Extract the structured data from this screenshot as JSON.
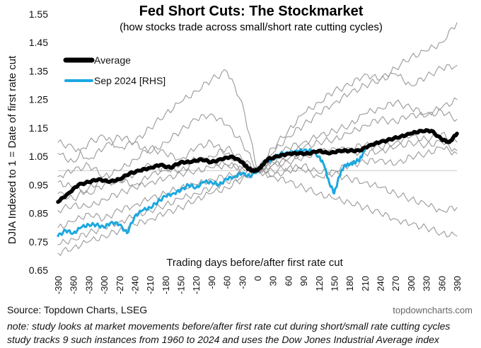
{
  "chart_data": {
    "type": "line",
    "title": "Fed Short Cuts: The Stockmarket",
    "subtitle": "(how stocks trade across small/short rate cutting cycles)",
    "ylabel": "DJIA Indexed to 1 = Date of first rate cut",
    "xlabel": "Trading days before/after first rate cut",
    "ylim": [
      0.65,
      1.55
    ],
    "yticks": [
      "0.65",
      "0.75",
      "0.85",
      "0.95",
      "1.05",
      "1.15",
      "1.25",
      "1.35",
      "1.45",
      "1.55"
    ],
    "xlim": [
      -390,
      390
    ],
    "xticks": [
      "-390",
      "-360",
      "-330",
      "-300",
      "-270",
      "-240",
      "-210",
      "-180",
      "-150",
      "-120",
      "-90",
      "-60",
      "-30",
      "0",
      "30",
      "60",
      "90",
      "120",
      "150",
      "180",
      "210",
      "240",
      "270",
      "300",
      "330",
      "360",
      "390"
    ],
    "reference_line": 1.0,
    "legend_position": "top-left",
    "series": [
      {
        "name": "Average",
        "color": "#000000",
        "x": [
          -390,
          -370,
          -350,
          -330,
          -310,
          -290,
          -270,
          -250,
          -230,
          -210,
          -190,
          -170,
          -150,
          -130,
          -110,
          -90,
          -70,
          -50,
          -30,
          -20,
          -10,
          0,
          10,
          20,
          40,
          60,
          80,
          100,
          120,
          140,
          160,
          180,
          200,
          220,
          240,
          260,
          280,
          300,
          320,
          340,
          360,
          375,
          390
        ],
        "values": [
          0.89,
          0.92,
          0.95,
          0.96,
          0.97,
          0.96,
          0.97,
          0.99,
          1.0,
          1.01,
          1.02,
          1.01,
          1.03,
          1.03,
          1.04,
          1.03,
          1.04,
          1.05,
          1.03,
          1.01,
          1.0,
          1.0,
          1.02,
          1.04,
          1.05,
          1.06,
          1.06,
          1.06,
          1.07,
          1.06,
          1.07,
          1.07,
          1.07,
          1.09,
          1.1,
          1.11,
          1.12,
          1.13,
          1.14,
          1.14,
          1.11,
          1.1,
          1.13
        ]
      },
      {
        "name": "Sep 2024 [RHS]",
        "color": "#1ba8e0",
        "x": [
          -390,
          -375,
          -360,
          -345,
          -330,
          -315,
          -300,
          -285,
          -270,
          -255,
          -240,
          -225,
          -210,
          -195,
          -180,
          -165,
          -150,
          -135,
          -120,
          -105,
          -90,
          -75,
          -60,
          -45,
          -30,
          -15,
          0,
          15,
          30,
          45,
          60,
          75,
          90,
          105,
          120,
          130,
          140,
          150,
          160,
          170,
          180,
          190,
          200,
          210
        ],
        "values": [
          0.77,
          0.79,
          0.78,
          0.8,
          0.81,
          0.81,
          0.8,
          0.82,
          0.81,
          0.78,
          0.84,
          0.86,
          0.87,
          0.89,
          0.91,
          0.92,
          0.93,
          0.95,
          0.94,
          0.96,
          0.96,
          0.95,
          0.97,
          0.98,
          0.99,
          0.98,
          1.0,
          1.03,
          1.04,
          1.06,
          1.06,
          1.07,
          1.07,
          1.07,
          1.05,
          1.02,
          0.96,
          0.92,
          0.98,
          1.02,
          1.02,
          1.03,
          1.04,
          1.07
        ]
      }
    ],
    "background_series": [
      {
        "color": "#999999",
        "x": [
          -390,
          -360,
          -330,
          -300,
          -270,
          -240,
          -210,
          -180,
          -150,
          -120,
          -90,
          -60,
          -30,
          0,
          30,
          60,
          90,
          120,
          150,
          180,
          210,
          240,
          270,
          300,
          330,
          360,
          390
        ],
        "values": [
          1.06,
          1.03,
          1.1,
          1.12,
          1.08,
          1.1,
          1.15,
          1.2,
          1.24,
          1.28,
          1.32,
          1.35,
          1.24,
          1.0,
          1.08,
          1.14,
          1.2,
          1.24,
          1.28,
          1.3,
          1.34,
          1.32,
          1.36,
          1.4,
          1.42,
          1.45,
          1.52
        ]
      },
      {
        "color": "#999999",
        "x": [
          -390,
          -360,
          -330,
          -300,
          -270,
          -240,
          -210,
          -180,
          -150,
          -120,
          -90,
          -60,
          -30,
          0,
          30,
          60,
          90,
          120,
          150,
          180,
          210,
          240,
          270,
          300,
          330,
          360,
          390
        ],
        "values": [
          1.1,
          1.08,
          1.04,
          1.08,
          1.12,
          1.1,
          1.06,
          1.1,
          1.14,
          1.18,
          1.2,
          1.16,
          1.1,
          1.0,
          1.06,
          1.12,
          1.16,
          1.2,
          1.24,
          1.27,
          1.3,
          1.32,
          1.34,
          1.3,
          1.33,
          1.36,
          1.37
        ]
      },
      {
        "color": "#999999",
        "x": [
          -390,
          -360,
          -330,
          -300,
          -270,
          -240,
          -210,
          -180,
          -150,
          -120,
          -90,
          -60,
          -30,
          0,
          30,
          60,
          90,
          120,
          150,
          180,
          210,
          240,
          270,
          300,
          330,
          360,
          390
        ],
        "values": [
          0.98,
          1.0,
          1.02,
          0.98,
          1.0,
          1.04,
          1.08,
          1.06,
          1.04,
          1.08,
          1.1,
          1.06,
          1.02,
          1.0,
          1.04,
          1.08,
          1.1,
          1.12,
          1.14,
          1.16,
          1.2,
          1.22,
          1.24,
          1.22,
          1.2,
          1.22,
          1.25
        ]
      },
      {
        "color": "#999999",
        "x": [
          -390,
          -360,
          -330,
          -300,
          -270,
          -240,
          -210,
          -180,
          -150,
          -120,
          -90,
          -60,
          -30,
          0,
          30,
          60,
          90,
          120,
          150,
          180,
          210,
          240,
          270,
          300,
          330,
          360,
          390
        ],
        "values": [
          0.92,
          0.9,
          0.94,
          0.97,
          0.96,
          0.99,
          1.02,
          1.0,
          1.02,
          1.04,
          1.03,
          1.02,
          1.01,
          1.0,
          1.03,
          1.06,
          1.08,
          1.1,
          1.11,
          1.13,
          1.16,
          1.18,
          1.17,
          1.2,
          1.19,
          1.21,
          1.18
        ]
      },
      {
        "color": "#999999",
        "x": [
          -390,
          -360,
          -330,
          -300,
          -270,
          -240,
          -210,
          -180,
          -150,
          -120,
          -90,
          -60,
          -30,
          0,
          30,
          60,
          90,
          120,
          150,
          180,
          210,
          240,
          270,
          300,
          330,
          360,
          390
        ],
        "values": [
          0.86,
          0.88,
          0.87,
          0.9,
          0.92,
          0.94,
          0.96,
          0.97,
          0.99,
          1.0,
          1.01,
          1.02,
          1.01,
          1.0,
          1.02,
          1.04,
          1.06,
          1.07,
          1.06,
          1.08,
          1.09,
          1.08,
          1.1,
          1.12,
          1.11,
          1.13,
          1.1
        ]
      },
      {
        "color": "#999999",
        "x": [
          -390,
          -360,
          -330,
          -300,
          -270,
          -240,
          -210,
          -180,
          -150,
          -120,
          -90,
          -60,
          -30,
          0,
          30,
          60,
          90,
          120,
          150,
          180,
          210,
          240,
          270,
          300,
          330,
          360,
          390
        ],
        "values": [
          0.8,
          0.82,
          0.85,
          0.83,
          0.86,
          0.88,
          0.9,
          0.92,
          0.94,
          0.95,
          0.97,
          0.98,
          0.99,
          1.0,
          1.02,
          1.03,
          1.05,
          1.06,
          1.08,
          1.07,
          1.06,
          1.07,
          1.08,
          1.1,
          1.09,
          1.1,
          1.07
        ]
      },
      {
        "color": "#999999",
        "x": [
          -390,
          -360,
          -330,
          -300,
          -270,
          -240,
          -210,
          -180,
          -150,
          -120,
          -90,
          -60,
          -30,
          0,
          30,
          60,
          90,
          120,
          150,
          180,
          210,
          240,
          270,
          300,
          330,
          360,
          390
        ],
        "values": [
          0.74,
          0.76,
          0.78,
          0.8,
          0.82,
          0.84,
          0.86,
          0.88,
          0.9,
          0.92,
          0.94,
          0.96,
          0.98,
          1.0,
          1.0,
          1.01,
          1.0,
          0.98,
          0.99,
          0.97,
          0.96,
          0.94,
          0.92,
          0.9,
          0.88,
          0.86,
          0.87
        ]
      },
      {
        "color": "#999999",
        "x": [
          -390,
          -360,
          -330,
          -300,
          -270,
          -240,
          -210,
          -180,
          -150,
          -120,
          -90,
          -60,
          -30,
          0,
          30,
          60,
          90,
          120,
          150,
          180,
          210,
          240,
          270,
          300,
          330,
          360,
          390
        ],
        "values": [
          0.71,
          0.73,
          0.75,
          0.77,
          0.79,
          0.81,
          0.83,
          0.85,
          0.87,
          0.9,
          0.92,
          0.94,
          0.97,
          1.0,
          0.98,
          0.96,
          0.94,
          0.92,
          0.9,
          0.89,
          0.87,
          0.85,
          0.83,
          0.81,
          0.8,
          0.78,
          0.77
        ]
      },
      {
        "color": "#999999",
        "x": [
          -390,
          -360,
          -330,
          -300,
          -270,
          -240,
          -210,
          -180,
          -150,
          -120,
          -90,
          -60,
          -30,
          0,
          30,
          60,
          90,
          120,
          150,
          180,
          210,
          240,
          270,
          300,
          330,
          360,
          390
        ],
        "values": [
          0.96,
          0.94,
          0.92,
          0.95,
          0.97,
          0.95,
          0.98,
          1.01,
          1.0,
          1.03,
          1.05,
          1.08,
          1.04,
          1.0,
          0.98,
          1.0,
          1.02,
          0.99,
          1.0,
          1.02,
          1.03,
          1.04,
          1.02,
          1.05,
          1.06,
          1.08,
          1.06
        ]
      }
    ]
  },
  "footer": {
    "source": "Source: Topdown Charts, LSEG",
    "watermark": "topdowncharts.com",
    "note_line1": "note: study looks at market movements before/after first rate cut during short/small rate cutting cycles",
    "note_line2": "study tracks 9 such instances from 1960 to 2024 and uses the Dow Jones Industrial Average index"
  }
}
